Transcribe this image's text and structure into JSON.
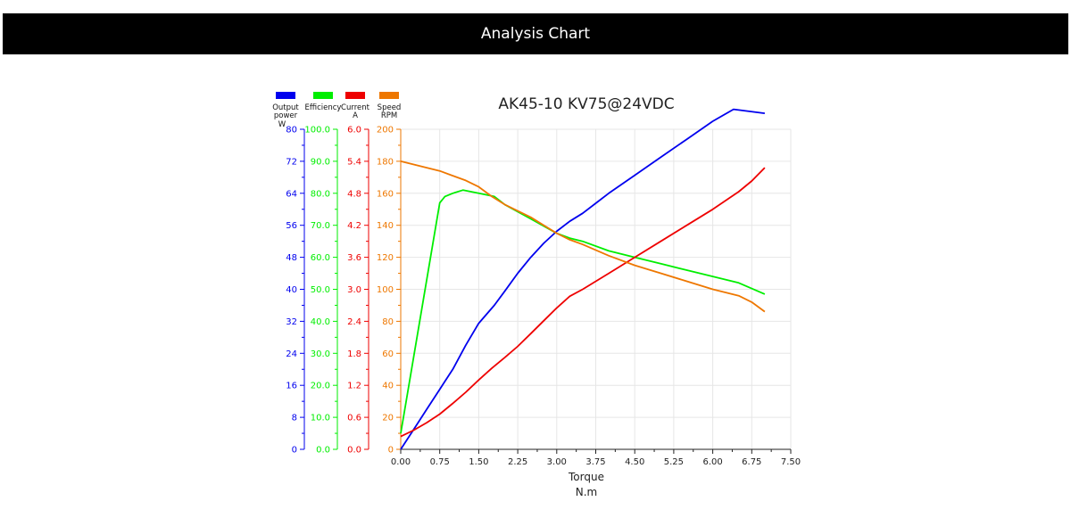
{
  "header": {
    "title": "Analysis Chart"
  },
  "chart_data": {
    "type": "line",
    "title": "AK45-10 KV75@24VDC",
    "xlabel": "Torque",
    "xunit": "N.m",
    "xlim": [
      0,
      7.5
    ],
    "xticks": [
      "0.00",
      "0.75",
      "1.50",
      "2.25",
      "3.00",
      "3.75",
      "4.50",
      "5.25",
      "6.00",
      "6.75",
      "7.50"
    ],
    "grid": true,
    "legend_position": "top-left",
    "axes": [
      {
        "id": "power",
        "label": "Output power",
        "unit": "W",
        "color": "#0000ee",
        "min": 0,
        "max": 80,
        "ticks": [
          "0",
          "8",
          "16",
          "24",
          "32",
          "40",
          "48",
          "56",
          "64",
          "72",
          "80"
        ]
      },
      {
        "id": "efficiency",
        "label": "Efficiency",
        "unit": "",
        "color": "#00ee00",
        "min": 0,
        "max": 100,
        "ticks": [
          "0.0",
          "10.0",
          "20.0",
          "30.0",
          "40.0",
          "50.0",
          "60.0",
          "70.0",
          "80.0",
          "90.0",
          "100.0"
        ]
      },
      {
        "id": "current",
        "label": "Current",
        "unit": "A",
        "color": "#ee0000",
        "min": 0,
        "max": 6,
        "ticks": [
          "0.0",
          "0.6",
          "1.2",
          "1.8",
          "2.4",
          "3.0",
          "3.6",
          "4.2",
          "4.8",
          "5.4",
          "6.0"
        ]
      },
      {
        "id": "speed",
        "label": "Speed",
        "unit": "RPM",
        "color": "#ee7700",
        "min": 0,
        "max": 200,
        "ticks": [
          "0",
          "20",
          "40",
          "60",
          "80",
          "100",
          "120",
          "140",
          "160",
          "180",
          "200"
        ]
      }
    ],
    "series": [
      {
        "name": "Output power",
        "axis": "power",
        "color": "#0000ee",
        "x": [
          0,
          0.3,
          0.5,
          0.75,
          0.85,
          1.0,
          1.25,
          1.5,
          1.8,
          2.0,
          2.25,
          2.5,
          2.75,
          3.0,
          3.25,
          3.5,
          3.75,
          4.0,
          4.5,
          5.0,
          5.5,
          6.0,
          6.4,
          7.0
        ],
        "y": [
          0,
          6,
          10,
          15,
          17,
          20,
          26,
          31.5,
          36,
          39.5,
          44,
          48,
          51.5,
          54.5,
          57,
          59,
          61.5,
          64,
          68.5,
          73,
          77.5,
          82,
          85,
          84
        ]
      },
      {
        "name": "Efficiency",
        "axis": "efficiency",
        "color": "#00ee00",
        "x": [
          0,
          0.75,
          0.85,
          1.0,
          1.2,
          1.5,
          1.8,
          2.0,
          2.5,
          3.0,
          3.25,
          3.5,
          4.0,
          4.5,
          5.0,
          5.5,
          6.0,
          6.5,
          7.0
        ],
        "y": [
          5,
          77,
          79,
          80,
          81,
          80,
          79,
          76.5,
          72,
          67.5,
          66,
          65,
          62,
          60,
          58,
          56,
          54,
          52,
          48.5
        ]
      },
      {
        "name": "Current",
        "axis": "current",
        "color": "#ee0000",
        "x": [
          0,
          0.25,
          0.5,
          0.75,
          1.0,
          1.25,
          1.5,
          1.75,
          2.0,
          2.25,
          2.5,
          2.75,
          3.0,
          3.25,
          3.5,
          4.0,
          4.5,
          5.0,
          5.5,
          6.0,
          6.5,
          6.75,
          7.0
        ],
        "y": [
          0.24,
          0.36,
          0.5,
          0.66,
          0.86,
          1.07,
          1.3,
          1.52,
          1.72,
          1.93,
          2.17,
          2.41,
          2.65,
          2.87,
          3.0,
          3.3,
          3.6,
          3.9,
          4.2,
          4.5,
          4.83,
          5.03,
          5.28
        ]
      },
      {
        "name": "Speed",
        "axis": "speed",
        "color": "#ee7700",
        "x": [
          0,
          0.5,
          0.75,
          1.0,
          1.25,
          1.5,
          1.75,
          2.0,
          2.5,
          3.0,
          3.25,
          3.5,
          4.0,
          4.5,
          5.0,
          5.5,
          6.0,
          6.25,
          6.5,
          6.75,
          7.0
        ],
        "y": [
          180,
          176,
          174,
          171,
          168,
          164,
          158,
          153,
          145,
          135,
          131,
          128,
          121,
          115,
          110,
          105,
          100,
          98,
          96,
          92,
          86
        ]
      }
    ]
  }
}
